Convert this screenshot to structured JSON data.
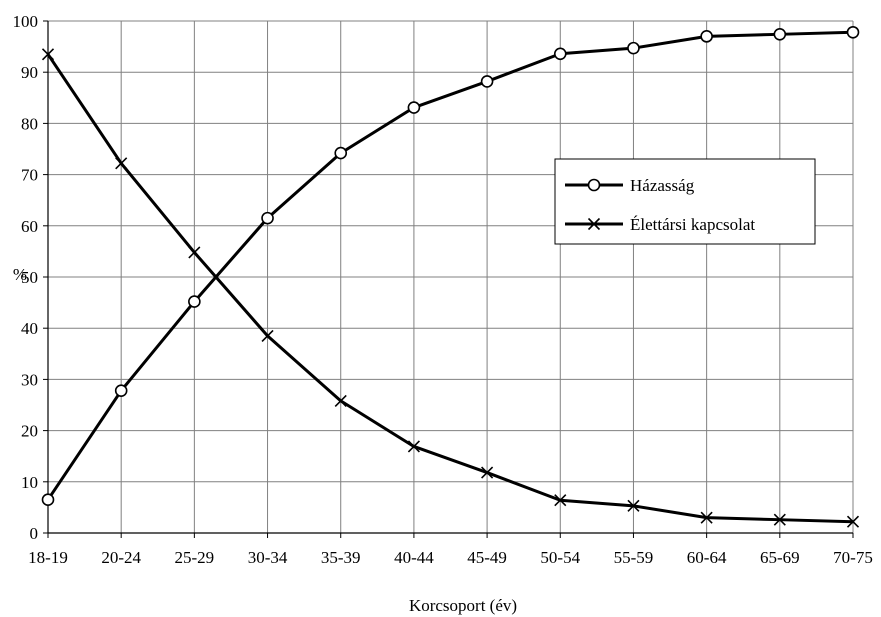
{
  "chart_data": {
    "type": "line",
    "title": "",
    "xlabel": "Korcsoport (év)",
    "ylabel": "%",
    "ylim": [
      0,
      100
    ],
    "yticks": [
      0,
      10,
      20,
      30,
      40,
      50,
      60,
      70,
      80,
      90,
      100
    ],
    "grid": true,
    "legend_position": "right",
    "categories": [
      "18-19",
      "20-24",
      "25-29",
      "30-34",
      "35-39",
      "40-44",
      "45-49",
      "50-54",
      "55-59",
      "60-64",
      "65-69",
      "70-75"
    ],
    "series": [
      {
        "name": "Házasság",
        "marker": "circle",
        "values": [
          6.5,
          27.8,
          45.2,
          61.5,
          74.2,
          83.1,
          88.2,
          93.6,
          94.7,
          97.0,
          97.4,
          97.8
        ]
      },
      {
        "name": "Élettársi kapcsolat",
        "marker": "x",
        "values": [
          93.5,
          72.2,
          54.8,
          38.5,
          25.8,
          16.9,
          11.8,
          6.4,
          5.3,
          3.0,
          2.6,
          2.2
        ]
      }
    ]
  },
  "colors": {
    "line": "#000000",
    "grid": "#808080",
    "background": "#ffffff"
  }
}
